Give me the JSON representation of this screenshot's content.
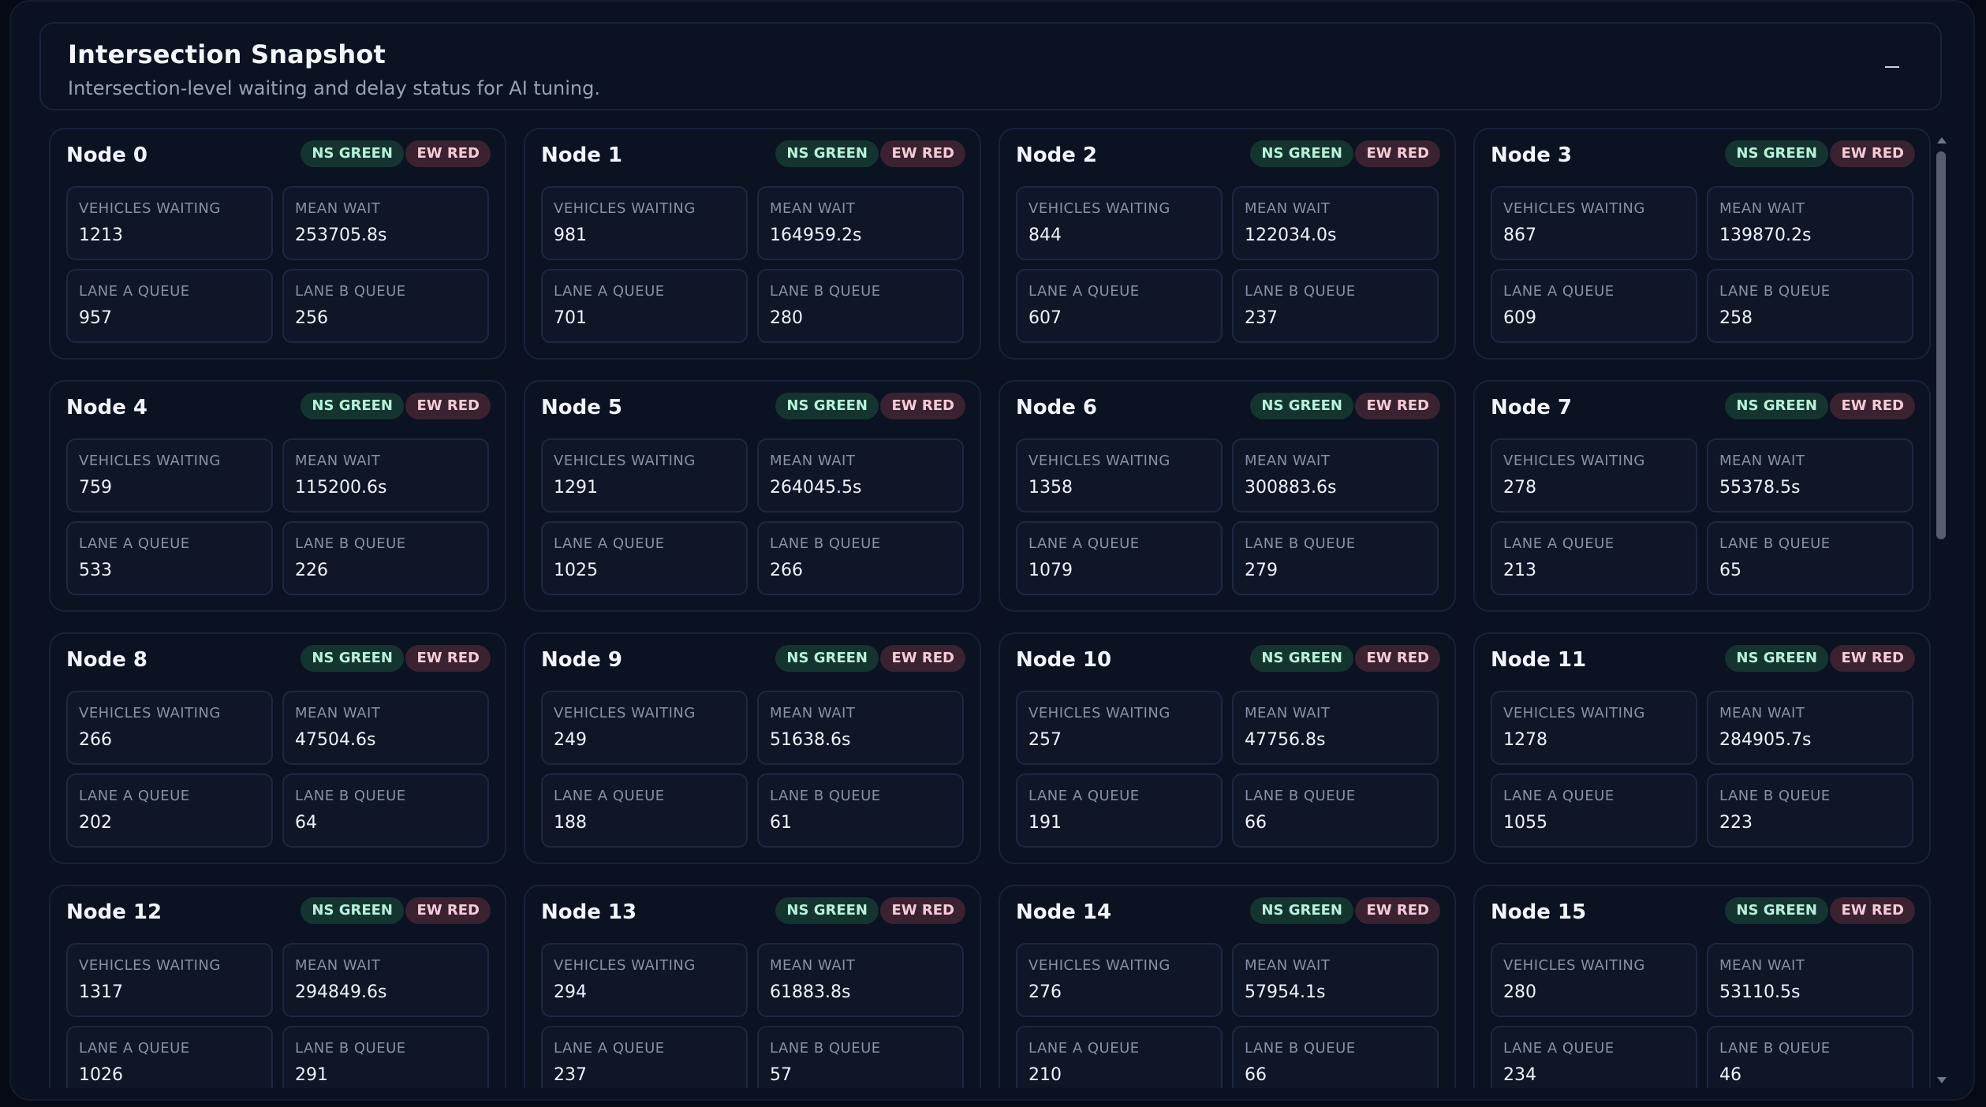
{
  "panel": {
    "title": "Intersection Snapshot",
    "subtitle": "Intersection-level waiting and delay status for AI tuning.",
    "collapse_icon": "minus-icon"
  },
  "labels": {
    "vehicles_waiting": "VEHICLES WAITING",
    "mean_wait": "MEAN WAIT",
    "lane_a_queue": "LANE A QUEUE",
    "lane_b_queue": "LANE B QUEUE",
    "ns_badge": "NS GREEN",
    "ew_badge": "EW RED"
  },
  "colors": {
    "ns_green_badge_bg": "#14352f",
    "ns_green_badge_text": "#b8f1d8",
    "ew_red_badge_bg": "#3a2230",
    "ew_red_badge_text": "#f5ccd6"
  },
  "nodes": [
    {
      "name": "Node 0",
      "ns": "NS GREEN",
      "ew": "EW RED",
      "vehicles_waiting": "1213",
      "mean_wait": "253705.8s",
      "lane_a_queue": "957",
      "lane_b_queue": "256"
    },
    {
      "name": "Node 1",
      "ns": "NS GREEN",
      "ew": "EW RED",
      "vehicles_waiting": "981",
      "mean_wait": "164959.2s",
      "lane_a_queue": "701",
      "lane_b_queue": "280"
    },
    {
      "name": "Node 2",
      "ns": "NS GREEN",
      "ew": "EW RED",
      "vehicles_waiting": "844",
      "mean_wait": "122034.0s",
      "lane_a_queue": "607",
      "lane_b_queue": "237"
    },
    {
      "name": "Node 3",
      "ns": "NS GREEN",
      "ew": "EW RED",
      "vehicles_waiting": "867",
      "mean_wait": "139870.2s",
      "lane_a_queue": "609",
      "lane_b_queue": "258"
    },
    {
      "name": "Node 4",
      "ns": "NS GREEN",
      "ew": "EW RED",
      "vehicles_waiting": "759",
      "mean_wait": "115200.6s",
      "lane_a_queue": "533",
      "lane_b_queue": "226"
    },
    {
      "name": "Node 5",
      "ns": "NS GREEN",
      "ew": "EW RED",
      "vehicles_waiting": "1291",
      "mean_wait": "264045.5s",
      "lane_a_queue": "1025",
      "lane_b_queue": "266"
    },
    {
      "name": "Node 6",
      "ns": "NS GREEN",
      "ew": "EW RED",
      "vehicles_waiting": "1358",
      "mean_wait": "300883.6s",
      "lane_a_queue": "1079",
      "lane_b_queue": "279"
    },
    {
      "name": "Node 7",
      "ns": "NS GREEN",
      "ew": "EW RED",
      "vehicles_waiting": "278",
      "mean_wait": "55378.5s",
      "lane_a_queue": "213",
      "lane_b_queue": "65"
    },
    {
      "name": "Node 8",
      "ns": "NS GREEN",
      "ew": "EW RED",
      "vehicles_waiting": "266",
      "mean_wait": "47504.6s",
      "lane_a_queue": "202",
      "lane_b_queue": "64"
    },
    {
      "name": "Node 9",
      "ns": "NS GREEN",
      "ew": "EW RED",
      "vehicles_waiting": "249",
      "mean_wait": "51638.6s",
      "lane_a_queue": "188",
      "lane_b_queue": "61"
    },
    {
      "name": "Node 10",
      "ns": "NS GREEN",
      "ew": "EW RED",
      "vehicles_waiting": "257",
      "mean_wait": "47756.8s",
      "lane_a_queue": "191",
      "lane_b_queue": "66"
    },
    {
      "name": "Node 11",
      "ns": "NS GREEN",
      "ew": "EW RED",
      "vehicles_waiting": "1278",
      "mean_wait": "284905.7s",
      "lane_a_queue": "1055",
      "lane_b_queue": "223"
    },
    {
      "name": "Node 12",
      "ns": "NS GREEN",
      "ew": "EW RED",
      "vehicles_waiting": "1317",
      "mean_wait": "294849.6s",
      "lane_a_queue": "1026",
      "lane_b_queue": "291"
    },
    {
      "name": "Node 13",
      "ns": "NS GREEN",
      "ew": "EW RED",
      "vehicles_waiting": "294",
      "mean_wait": "61883.8s",
      "lane_a_queue": "237",
      "lane_b_queue": "57"
    },
    {
      "name": "Node 14",
      "ns": "NS GREEN",
      "ew": "EW RED",
      "vehicles_waiting": "276",
      "mean_wait": "57954.1s",
      "lane_a_queue": "210",
      "lane_b_queue": "66"
    },
    {
      "name": "Node 15",
      "ns": "NS GREEN",
      "ew": "EW RED",
      "vehicles_waiting": "280",
      "mean_wait": "53110.5s",
      "lane_a_queue": "234",
      "lane_b_queue": "46"
    }
  ]
}
